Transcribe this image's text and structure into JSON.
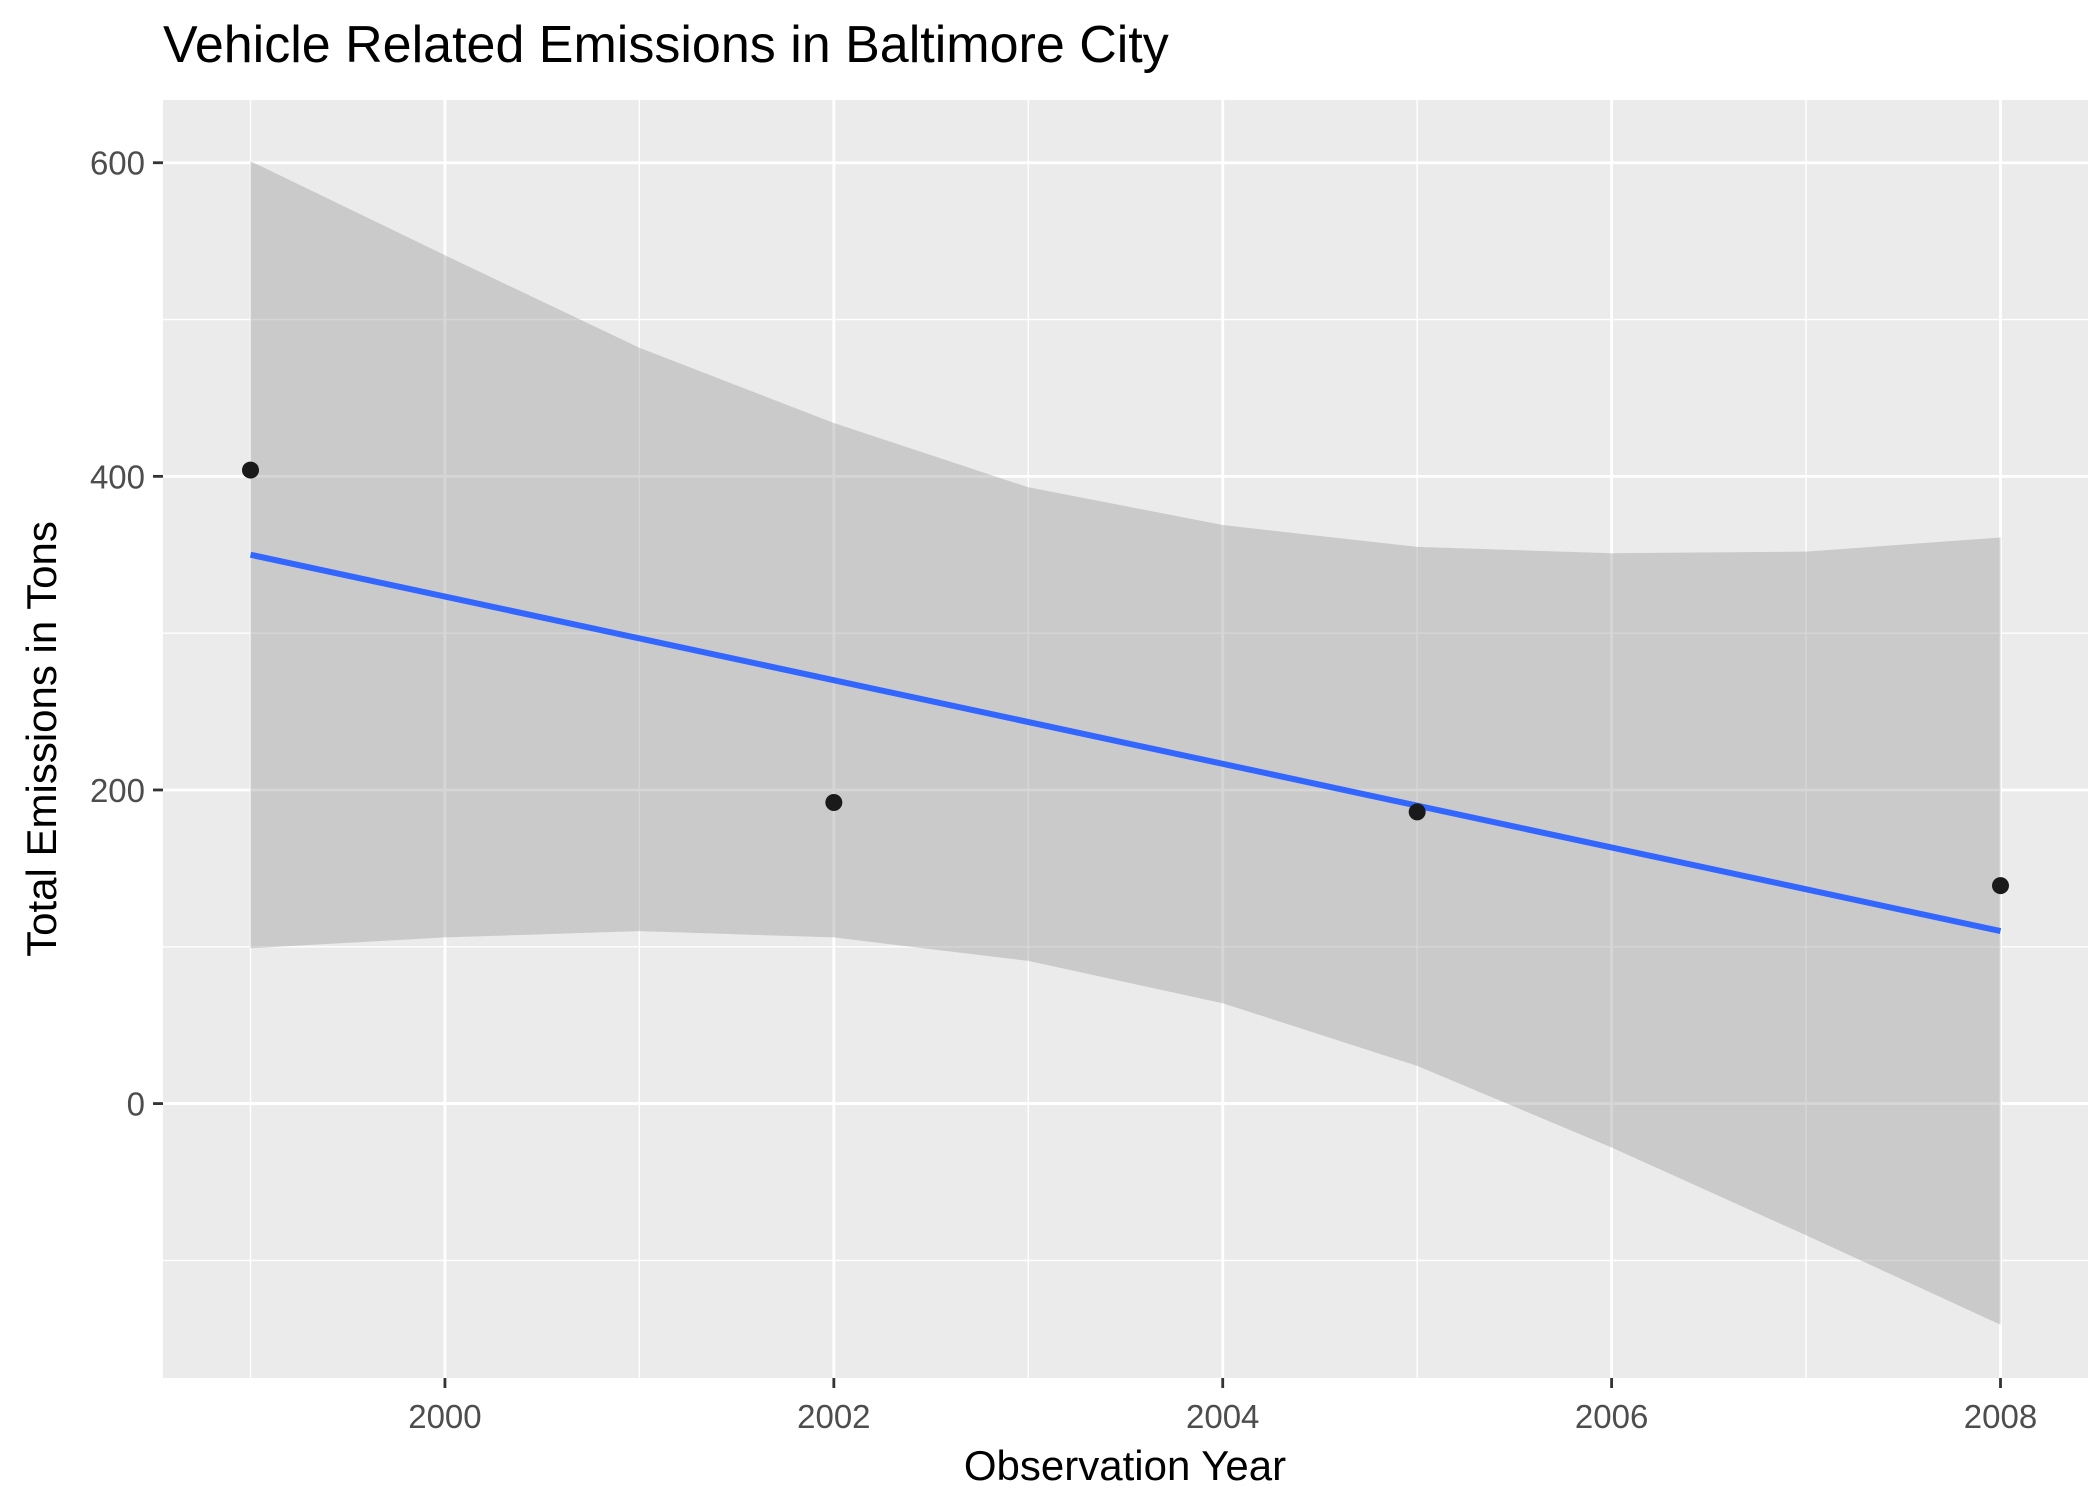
{
  "chart_data": {
    "type": "scatter",
    "title": "Vehicle Related Emissions in Baltimore City",
    "xlabel": "Observation Year",
    "ylabel": "Total Emissions in Tons",
    "x_ticks": [
      2000,
      2002,
      2004,
      2006,
      2008
    ],
    "y_ticks": [
      0,
      200,
      400,
      600
    ],
    "xlim": [
      1998.55,
      2008.45
    ],
    "ylim": [
      -175,
      640
    ],
    "grid": true,
    "points": [
      {
        "x": 1999,
        "y": 404
      },
      {
        "x": 2002,
        "y": 192
      },
      {
        "x": 2005,
        "y": 186
      },
      {
        "x": 2008,
        "y": 139
      }
    ],
    "trend_line": {
      "method": "linear",
      "color": "#3366ff",
      "x": [
        1999,
        2008
      ],
      "y": [
        350,
        110
      ]
    },
    "confidence_band": {
      "x": [
        1999,
        2000,
        2001,
        2002,
        2003,
        2004,
        2005,
        2006,
        2007,
        2008
      ],
      "lower": [
        99,
        106,
        110,
        106,
        91,
        64,
        24,
        -28,
        -84,
        -141
      ],
      "upper": [
        601,
        541,
        482,
        434,
        393,
        369,
        355,
        351,
        352,
        361
      ]
    },
    "colors": {
      "panel_background": "#ebebeb",
      "grid_major": "#ffffff",
      "band_fill": "#999999",
      "point": "#1a1a1a"
    }
  }
}
